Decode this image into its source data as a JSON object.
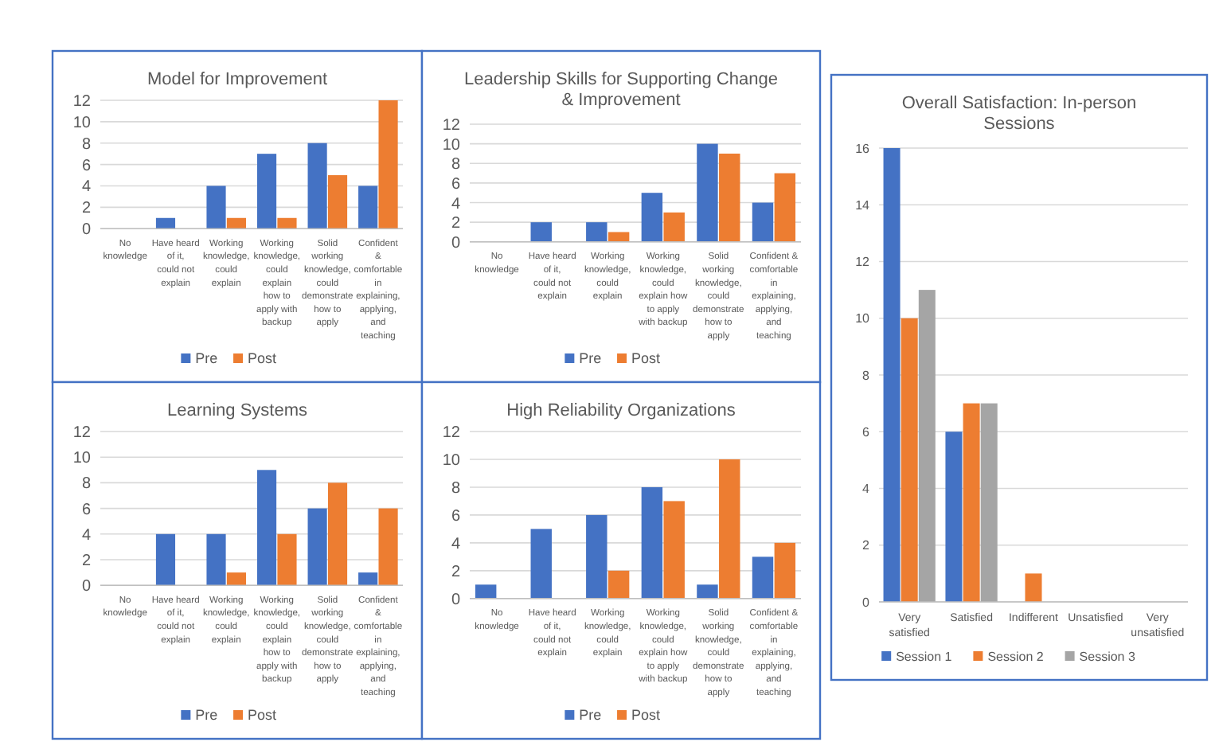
{
  "chart_data": [
    {
      "type": "bar",
      "title": "Model for Improvement",
      "categories": [
        "No knowledge",
        "Have heard of it, could not explain",
        "Working knowledge, could explain",
        "Working knowledge, could explain how to apply with backup",
        "Solid working knowledge, could demonstrate how to apply",
        "Confident & comfortable in explaining, applying, and teaching"
      ],
      "series": [
        {
          "name": "Pre",
          "color": "#4472c4",
          "values": [
            0,
            1,
            4,
            7,
            8,
            4
          ]
        },
        {
          "name": "Post",
          "color": "#ed7d31",
          "values": [
            0,
            0,
            1,
            1,
            5,
            12
          ]
        }
      ],
      "ylim": [
        0,
        12
      ],
      "yticks": [
        0,
        2,
        4,
        6,
        8,
        10,
        12
      ],
      "grid": "y",
      "legend": "bottom"
    },
    {
      "type": "bar",
      "title": "Leadership Skills for Supporting Change & Improvement",
      "categories": [
        "No knowledge",
        "Have heard of it, could not explain",
        "Working knowledge, could explain",
        "Working knowledge, could explain how to apply with backup",
        "Solid working knowledge, could demonstrate how to apply",
        "Confident & comfortable in explaining, applying, and teaching"
      ],
      "series": [
        {
          "name": "Pre",
          "color": "#4472c4",
          "values": [
            0,
            2,
            2,
            5,
            10,
            4
          ]
        },
        {
          "name": "Post",
          "color": "#ed7d31",
          "values": [
            0,
            0,
            1,
            3,
            9,
            7
          ]
        }
      ],
      "ylim": [
        0,
        12
      ],
      "yticks": [
        0,
        2,
        4,
        6,
        8,
        10,
        12
      ],
      "grid": "y",
      "legend": "bottom"
    },
    {
      "type": "bar",
      "title": "Learning Systems",
      "categories": [
        "No knowledge",
        "Have heard of it, could not explain",
        "Working knowledge, could explain",
        "Working knowledge, could explain how to apply with backup",
        "Solid working knowledge, could demonstrate how to apply",
        "Confident & comfortable in explaining, applying, and teaching"
      ],
      "series": [
        {
          "name": "Pre",
          "color": "#4472c4",
          "values": [
            0,
            4,
            4,
            9,
            6,
            1
          ]
        },
        {
          "name": "Post",
          "color": "#ed7d31",
          "values": [
            0,
            0,
            1,
            4,
            8,
            6
          ]
        }
      ],
      "ylim": [
        0,
        12
      ],
      "yticks": [
        0,
        2,
        4,
        6,
        8,
        10,
        12
      ],
      "grid": "y",
      "legend": "bottom"
    },
    {
      "type": "bar",
      "title": "High Reliability Organizations",
      "categories": [
        "No knowledge",
        "Have heard of it, could not explain",
        "Working knowledge, could explain",
        "Working knowledge, could explain how to apply with backup",
        "Solid working knowledge, could demonstrate how to apply",
        "Confident & comfortable in explaining, applying, and teaching"
      ],
      "series": [
        {
          "name": "Pre",
          "color": "#4472c4",
          "values": [
            1,
            5,
            6,
            8,
            1,
            3
          ]
        },
        {
          "name": "Post",
          "color": "#ed7d31",
          "values": [
            0,
            0,
            2,
            7,
            10,
            4
          ]
        }
      ],
      "ylim": [
        0,
        12
      ],
      "yticks": [
        0,
        2,
        4,
        6,
        8,
        10,
        12
      ],
      "grid": "y",
      "legend": "bottom"
    },
    {
      "type": "bar",
      "title": "Overall Satisfaction: In-person Sessions",
      "categories": [
        "Very satisfied",
        "Satisfied",
        "Indifferent",
        "Unsatisfied",
        "Very unsatisfied"
      ],
      "series": [
        {
          "name": "Session 1",
          "color": "#4472c4",
          "values": [
            16,
            6,
            0,
            0,
            0
          ]
        },
        {
          "name": "Session 2",
          "color": "#ed7d31",
          "values": [
            10,
            7,
            1,
            0,
            0
          ]
        },
        {
          "name": "Session 3",
          "color": "#a5a5a5",
          "values": [
            11,
            7,
            0,
            0,
            0
          ]
        }
      ],
      "ylim": [
        0,
        16
      ],
      "yticks": [
        0,
        2,
        4,
        6,
        8,
        10,
        12,
        14,
        16
      ],
      "grid": "y",
      "legend": "bottom"
    }
  ]
}
